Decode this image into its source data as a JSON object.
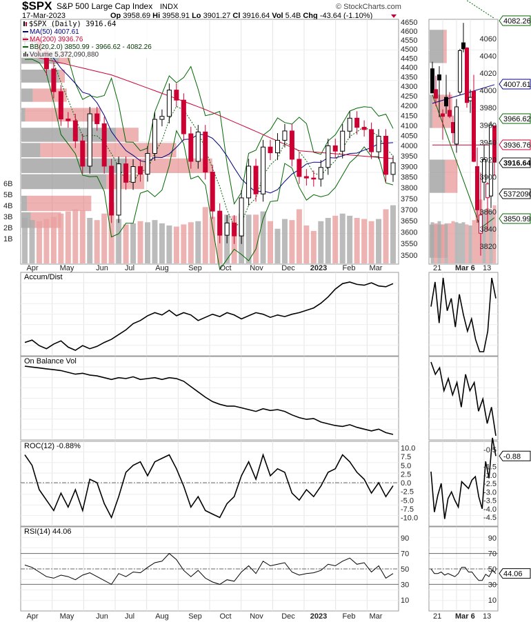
{
  "header": {
    "symbol": "$SPX",
    "name": "S&P 500 Large Cap Index",
    "exchange": "INDX",
    "date": "17-Mar-2023",
    "op_label": "Op",
    "op": "3958.69",
    "hi_label": "Hi",
    "hi": "3958.91",
    "lo_label": "Lo",
    "lo": "3901.27",
    "cl_label": "Cl",
    "cl": "3916.64",
    "vol_label": "Vol",
    "vol": "5.4B",
    "chg_label": "Chg",
    "chg": "-43.64 (-1.10%)",
    "brand": "© StockCharts.com"
  },
  "legend": {
    "price": "$SPX (Daily) 3916.64",
    "ma50": "MA(50) 4007.61",
    "ma200": "MA(200) 3936.76",
    "bb": "BB(20,2.0) 3850.99 - 3966.62 - 4082.26",
    "volume": "Volume 5,372,090,880"
  },
  "colors": {
    "up": "#000000",
    "down": "#cc0033",
    "ma50": "#000080",
    "ma200": "#cc0033",
    "bb": "#006600",
    "volume_up": "#aaaaaa",
    "volume_down": "#e8a0a0"
  },
  "panels": {
    "ad": "Accum/Dist",
    "obv": "On Balance Vol",
    "roc": "ROC(12) -0.88%",
    "rsi": "RSI(14) 44.06"
  },
  "tags": {
    "bb_upper": "4082.26",
    "ma50": "4007.61",
    "bb_mid": "3966.62",
    "ma200": "3936.76",
    "close": "3916.64",
    "volume": "5372090",
    "bb_lower": "3850.99",
    "roc": "-0.88",
    "rsi": "44.06"
  },
  "chart_data": {
    "type": "candlestick",
    "price_ticks": [
      4650,
      4600,
      4550,
      4500,
      4450,
      4400,
      4350,
      4300,
      4250,
      4200,
      4150,
      4100,
      4050,
      4000,
      3950,
      3900,
      3850,
      3800,
      3750,
      3700,
      3650,
      3600,
      3550,
      3500
    ],
    "volume_ticks": [
      "6B",
      "5B",
      "4B",
      "3B",
      "2B",
      "1B"
    ],
    "months": [
      "Apr",
      "May",
      "Jun",
      "Jul",
      "Aug",
      "Sep",
      "Oct",
      "Nov",
      "Dec",
      "2023",
      "Feb",
      "Mar"
    ],
    "weekly_close": [
      4543,
      4545,
      4488,
      4392,
      4272,
      4132,
      4123,
      4023,
      3901,
      4158,
      4108,
      3901,
      3675,
      3912,
      3825,
      3899,
      3863,
      3962,
      4130,
      4145,
      4280,
      4228,
      4058,
      3924,
      4067,
      3873,
      3693,
      3586,
      3640,
      3583,
      3753,
      3901,
      3771,
      3993,
      3965,
      4026,
      4072,
      3934,
      3852,
      3845,
      3840,
      3895,
      3999,
      3973,
      4071,
      4136,
      4090,
      4079,
      3970,
      4046,
      3862,
      3917
    ],
    "weekly_volume_b": [
      4.2,
      4.0,
      3.9,
      4.1,
      4.3,
      4.6,
      4.8,
      5.0,
      4.9,
      4.2,
      4.0,
      4.6,
      5.6,
      4.1,
      3.6,
      3.7,
      3.9,
      3.8,
      4.0,
      3.7,
      3.5,
      3.4,
      3.6,
      3.8,
      3.9,
      5.2,
      4.3,
      4.6,
      4.5,
      4.4,
      4.6,
      4.5,
      4.5,
      4.8,
      3.9,
      3.2,
      4.1,
      4.0,
      5.0,
      3.5,
      3.0,
      3.9,
      4.2,
      4.4,
      4.6,
      4.4,
      4.2,
      4.1,
      3.9,
      4.1,
      5.0,
      5.37
    ],
    "ma200_keypoints": [
      [
        0,
        4470
      ],
      [
        12,
        4360
      ],
      [
        25,
        4180
      ],
      [
        38,
        3975
      ],
      [
        51,
        3937
      ]
    ],
    "volume_by_price": [
      {
        "price": 4450,
        "up": 2,
        "down": 0.6
      },
      {
        "price": 4350,
        "up": 2,
        "down": 0.3
      },
      {
        "price": 4250,
        "up": 0.6,
        "down": 1.8
      },
      {
        "price": 4150,
        "up": 0.2,
        "down": 4
      },
      {
        "price": 4050,
        "up": 5,
        "down": 1.2
      },
      {
        "price": 3975,
        "up": 1,
        "down": 7.2
      },
      {
        "price": 3900,
        "up": 5.6,
        "down": 4.5
      },
      {
        "price": 3825,
        "up": 4.5,
        "down": 2
      },
      {
        "price": 3725,
        "up": 0.3,
        "down": 3.4
      },
      {
        "price": 3650,
        "up": 0.5,
        "down": 1.6
      }
    ],
    "accum_dist": [
      22,
      25,
      18,
      14,
      20,
      24,
      16,
      12,
      18,
      14,
      17,
      22,
      26,
      32,
      38,
      46,
      50,
      56,
      60,
      57,
      63,
      56,
      60,
      57,
      50,
      54,
      58,
      55,
      60,
      57,
      52,
      56,
      60,
      58,
      54,
      57,
      55,
      58,
      60,
      63,
      66,
      72,
      80,
      90,
      97,
      99,
      96,
      95,
      98,
      94,
      93,
      97
    ],
    "obv": [
      95,
      94,
      93,
      92,
      91,
      90,
      88,
      86,
      87,
      85,
      84,
      82,
      80,
      82,
      81,
      83,
      80,
      81,
      82,
      80,
      82,
      81,
      78,
      72,
      66,
      60,
      55,
      52,
      50,
      50,
      48,
      46,
      44,
      47,
      45,
      46,
      44,
      40,
      37,
      35,
      36,
      32,
      30,
      28,
      27,
      29,
      26,
      24,
      22,
      24,
      20,
      18
    ],
    "roc": [
      8,
      5,
      -2,
      -5,
      -8,
      -3,
      -7,
      -2,
      -8,
      1,
      0,
      -6,
      -10,
      -4,
      3,
      5,
      6,
      2,
      6,
      7,
      8,
      4,
      -1,
      -7,
      -4,
      -8,
      -9,
      -10,
      -6,
      -4,
      2,
      6,
      1,
      8,
      2,
      4,
      3,
      -3,
      -5,
      -2,
      -4,
      -1,
      3,
      4,
      8,
      6,
      3,
      1,
      -3,
      0,
      -4,
      -0.88
    ],
    "rsi": [
      55,
      52,
      46,
      40,
      38,
      42,
      40,
      36,
      42,
      45,
      40,
      35,
      30,
      44,
      40,
      46,
      45,
      52,
      58,
      60,
      70,
      62,
      48,
      40,
      48,
      38,
      33,
      30,
      36,
      34,
      46,
      54,
      44,
      60,
      54,
      56,
      58,
      46,
      42,
      44,
      45,
      48,
      56,
      54,
      60,
      64,
      56,
      58,
      46,
      54,
      38,
      44.06
    ],
    "zoom_days": [
      "21",
      "Mar 6",
      "13"
    ],
    "zoom_ticks": [
      4060,
      4040,
      4020,
      4000,
      3980,
      3960,
      3940,
      3920,
      3900,
      3860,
      3840,
      3820
    ],
    "zoom_ohlc": [
      [
        4025,
        4033,
        3997,
        3997
      ],
      [
        4001,
        4017,
        3982,
        3991
      ],
      [
        4018,
        4028,
        3969,
        4012
      ],
      [
        3973,
        3978,
        3943,
        3970
      ],
      [
        3992,
        4018,
        3973,
        3982
      ],
      [
        3977,
        3998,
        3968,
        3970
      ],
      [
        3963,
        3971,
        3939,
        3951
      ],
      [
        3938,
        3990,
        3928,
        3981
      ],
      [
        3998,
        4048,
        3995,
        4046
      ],
      [
        4055,
        4078,
        4044,
        4048
      ],
      [
        4049,
        4050,
        3980,
        3986
      ],
      [
        3988,
        4001,
        3974,
        3992
      ],
      [
        3999,
        4018,
        3917,
        3918
      ],
      [
        3912,
        3934,
        3847,
        3862
      ],
      [
        3835,
        3905,
        3809,
        3856
      ],
      [
        3894,
        3937,
        3873,
        3920
      ],
      [
        3876,
        3894,
        3838,
        3892
      ],
      [
        3878,
        3964,
        3864,
        3960
      ],
      [
        3959,
        3959,
        3901,
        3917
      ]
    ],
    "zoom_roc_ticks": [
      "-0.5",
      "-1.5",
      "-2.0",
      "-2.5",
      "-3.0",
      "-3.5",
      "-4.0",
      "-4.5"
    ],
    "zoom_roc": [
      -1.8,
      -4.2,
      -3.2,
      -2.5,
      -4.6,
      -3.4,
      -3.0,
      -3.5,
      -3.9,
      -2.4,
      -2.6,
      -2.8,
      -2.3,
      -2.1,
      -3.3,
      -4.0,
      -1.2,
      -2.2,
      0.2,
      -0.88
    ],
    "zoom_ad": [
      60,
      90,
      40,
      95,
      55,
      70,
      35,
      75,
      50,
      30,
      45,
      20,
      5,
      5,
      30,
      95,
      70
    ],
    "zoom_obv": [
      95,
      80,
      88,
      60,
      75,
      55,
      70,
      40,
      80,
      60,
      70,
      35,
      50,
      20,
      40,
      5
    ],
    "zoom_rsi": [
      50,
      44,
      44,
      46,
      42,
      44,
      42,
      40,
      44,
      52,
      52,
      46,
      46,
      40,
      35,
      35,
      43,
      40,
      48,
      44.06
    ],
    "rsi_ticks": [
      90,
      70,
      50,
      30,
      10
    ],
    "roc_ticks": [
      "10.0",
      "7.5",
      "5.0",
      "2.5",
      "0.0",
      "-2.5",
      "-5.0",
      "-7.5",
      "-10.0"
    ]
  }
}
